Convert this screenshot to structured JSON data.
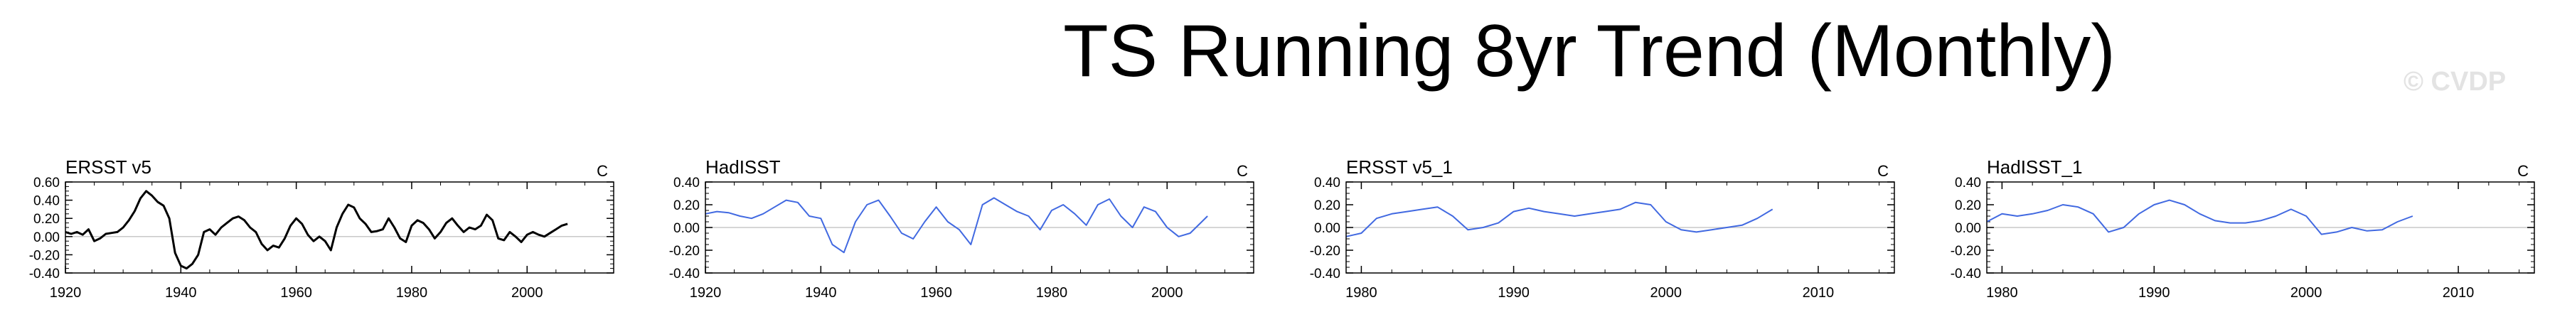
{
  "title": "TS Running 8yr Trend (Monthly)",
  "watermark": "© CVDP",
  "colors": {
    "black_series": "#000000",
    "blue_series": "#4169e1",
    "zero_line": "#c8c8c8"
  },
  "chart_data": [
    {
      "type": "line",
      "title": "ERSST v5",
      "units": "C",
      "color": "#000000",
      "xlim": [
        1920,
        2015
      ],
      "ylim": [
        -0.4,
        0.6
      ],
      "xticks": [
        1920,
        1940,
        1960,
        1980,
        2000
      ],
      "yticks": [
        -0.4,
        -0.2,
        0.0,
        0.2,
        0.4,
        0.6
      ],
      "ytick_labels": [
        "-0.40",
        "-0.20",
        "0.00",
        "0.20",
        "0.40",
        "0.60"
      ],
      "series": [
        {
          "x": [
            1920,
            1921,
            1922,
            1923,
            1924,
            1925,
            1926,
            1927,
            1928,
            1929,
            1930,
            1931,
            1932,
            1933,
            1934,
            1935,
            1936,
            1937,
            1938,
            1939,
            1940,
            1941,
            1942,
            1943,
            1944,
            1945,
            1946,
            1947,
            1948,
            1949,
            1950,
            1951,
            1952,
            1953,
            1954,
            1955,
            1956,
            1957,
            1958,
            1959,
            1960,
            1961,
            1962,
            1963,
            1964,
            1965,
            1966,
            1967,
            1968,
            1969,
            1970,
            1971,
            1972,
            1973,
            1974,
            1975,
            1976,
            1977,
            1978,
            1979,
            1980,
            1981,
            1982,
            1983,
            1984,
            1985,
            1986,
            1987,
            1988,
            1989,
            1990,
            1991,
            1992,
            1993,
            1994,
            1995,
            1996,
            1997,
            1998,
            1999,
            2000,
            2001,
            2002,
            2003,
            2004,
            2005,
            2006,
            2007
          ],
          "y": [
            0.05,
            0.03,
            0.05,
            0.02,
            0.08,
            -0.05,
            -0.02,
            0.03,
            0.04,
            0.05,
            0.1,
            0.18,
            0.28,
            0.42,
            0.5,
            0.45,
            0.38,
            0.34,
            0.2,
            -0.18,
            -0.32,
            -0.35,
            -0.3,
            -0.2,
            0.05,
            0.08,
            0.02,
            0.1,
            0.15,
            0.2,
            0.22,
            0.18,
            0.1,
            0.05,
            -0.08,
            -0.15,
            -0.1,
            -0.12,
            -0.02,
            0.12,
            0.2,
            0.14,
            0.02,
            -0.05,
            0.0,
            -0.05,
            -0.15,
            0.1,
            0.25,
            0.35,
            0.32,
            0.2,
            0.14,
            0.05,
            0.06,
            0.08,
            0.2,
            0.1,
            -0.02,
            -0.06,
            0.12,
            0.18,
            0.15,
            0.08,
            -0.02,
            0.05,
            0.15,
            0.2,
            0.12,
            0.05,
            0.1,
            0.08,
            0.12,
            0.24,
            0.18,
            -0.02,
            -0.04,
            0.05,
            0.0,
            -0.06,
            0.02,
            0.05,
            0.02,
            0.0,
            0.04,
            0.08,
            0.12,
            0.14
          ]
        }
      ]
    },
    {
      "type": "line",
      "title": "HadISST",
      "units": "C",
      "color": "#4169e1",
      "xlim": [
        1920,
        2015
      ],
      "ylim": [
        -0.4,
        0.4
      ],
      "xticks": [
        1920,
        1940,
        1960,
        1980,
        2000
      ],
      "yticks": [
        -0.4,
        -0.2,
        0.0,
        0.2,
        0.4
      ],
      "ytick_labels": [
        "-0.40",
        "-0.20",
        "0.00",
        "0.20",
        "0.40"
      ],
      "series": [
        {
          "x": [
            1920,
            1922,
            1924,
            1926,
            1928,
            1930,
            1932,
            1934,
            1936,
            1938,
            1940,
            1942,
            1944,
            1946,
            1948,
            1950,
            1952,
            1954,
            1956,
            1958,
            1960,
            1962,
            1964,
            1966,
            1968,
            1970,
            1972,
            1974,
            1976,
            1978,
            1980,
            1982,
            1984,
            1986,
            1988,
            1990,
            1992,
            1994,
            1996,
            1998,
            2000,
            2002,
            2004,
            2006,
            2007
          ],
          "y": [
            0.12,
            0.14,
            0.13,
            0.1,
            0.08,
            0.12,
            0.18,
            0.24,
            0.22,
            0.1,
            0.08,
            -0.15,
            -0.22,
            0.05,
            0.2,
            0.24,
            0.1,
            -0.05,
            -0.1,
            0.05,
            0.18,
            0.05,
            -0.02,
            -0.15,
            0.2,
            0.26,
            0.2,
            0.14,
            0.1,
            -0.02,
            0.15,
            0.2,
            0.12,
            0.02,
            0.2,
            0.25,
            0.1,
            0.0,
            0.18,
            0.14,
            0.0,
            -0.08,
            -0.05,
            0.05,
            0.1
          ]
        }
      ]
    },
    {
      "type": "line",
      "title": "ERSST v5_1",
      "units": "C",
      "color": "#4169e1",
      "xlim": [
        1979,
        2015
      ],
      "ylim": [
        -0.4,
        0.4
      ],
      "xticks": [
        1980,
        1990,
        2000,
        2010
      ],
      "yticks": [
        -0.4,
        -0.2,
        0.0,
        0.2,
        0.4
      ],
      "ytick_labels": [
        "-0.40",
        "-0.20",
        "0.00",
        "0.20",
        "0.40"
      ],
      "series": [
        {
          "x": [
            1979,
            1980,
            1981,
            1982,
            1983,
            1984,
            1985,
            1986,
            1987,
            1988,
            1989,
            1990,
            1991,
            1992,
            1993,
            1994,
            1995,
            1996,
            1997,
            1998,
            1999,
            2000,
            2001,
            2002,
            2003,
            2004,
            2005,
            2006,
            2007
          ],
          "y": [
            -0.08,
            -0.05,
            0.08,
            0.12,
            0.14,
            0.16,
            0.18,
            0.1,
            -0.02,
            0.0,
            0.04,
            0.14,
            0.17,
            0.14,
            0.12,
            0.1,
            0.12,
            0.14,
            0.16,
            0.22,
            0.2,
            0.05,
            -0.02,
            -0.04,
            -0.02,
            0.0,
            0.02,
            0.08,
            0.16
          ]
        }
      ]
    },
    {
      "type": "line",
      "title": "HadISST_1",
      "units": "C",
      "color": "#4169e1",
      "xlim": [
        1979,
        2015
      ],
      "ylim": [
        -0.4,
        0.4
      ],
      "xticks": [
        1980,
        1990,
        2000,
        2010
      ],
      "yticks": [
        -0.4,
        -0.2,
        0.0,
        0.2,
        0.4
      ],
      "ytick_labels": [
        "-0.40",
        "-0.20",
        "0.00",
        "0.20",
        "0.40"
      ],
      "series": [
        {
          "x": [
            1979,
            1980,
            1981,
            1982,
            1983,
            1984,
            1985,
            1986,
            1987,
            1988,
            1989,
            1990,
            1991,
            1992,
            1993,
            1994,
            1995,
            1996,
            1997,
            1998,
            1999,
            2000,
            2001,
            2002,
            2003,
            2004,
            2005,
            2006,
            2007
          ],
          "y": [
            0.05,
            0.12,
            0.1,
            0.12,
            0.15,
            0.2,
            0.18,
            0.12,
            -0.04,
            0.0,
            0.12,
            0.2,
            0.24,
            0.2,
            0.12,
            0.06,
            0.04,
            0.04,
            0.06,
            0.1,
            0.16,
            0.1,
            -0.06,
            -0.04,
            0.0,
            -0.03,
            -0.02,
            0.05,
            0.1
          ]
        }
      ]
    }
  ]
}
